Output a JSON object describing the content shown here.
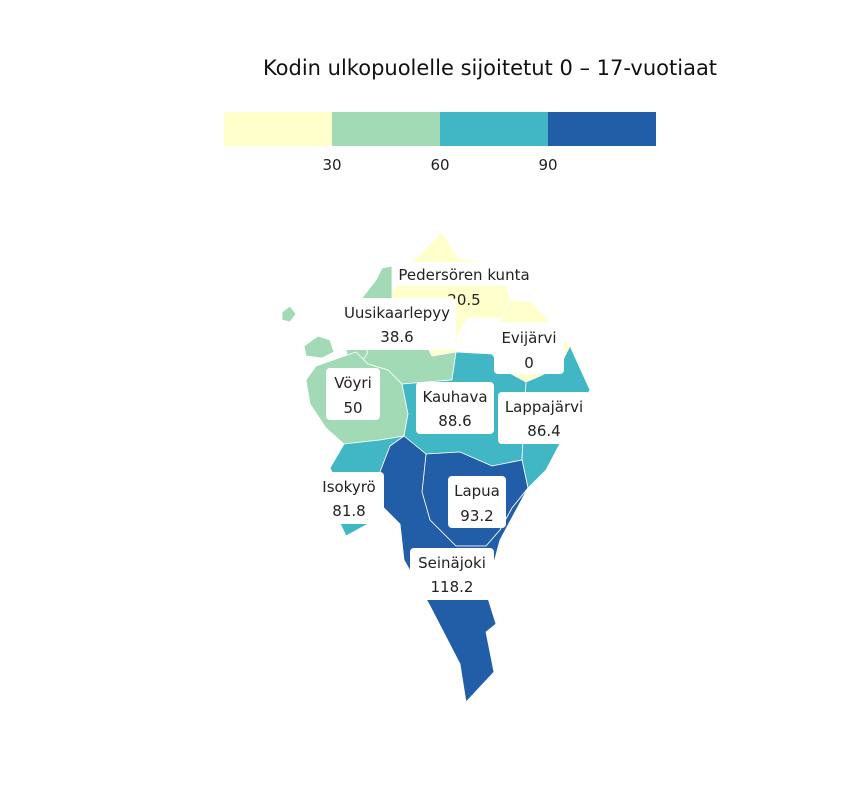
{
  "title": "Kodin ulkopuolelle sijoitetut 0 – 17-vuotiaat",
  "legend": {
    "colors": [
      "#ffffcc",
      "#a1dab4",
      "#41b6c4",
      "#225ea8"
    ],
    "thresholds": [
      30,
      60,
      90
    ],
    "tick_labels": [
      "30",
      "60",
      "90"
    ]
  },
  "municipalities": [
    {
      "name": "Pedersören kunta",
      "value": "20.5",
      "color_index": 0
    },
    {
      "name": "Uusikaarlepyy",
      "value": "38.6",
      "color_index": 1
    },
    {
      "name": "Evijärvi",
      "value": "0",
      "color_index": 0
    },
    {
      "name": "Vöyri",
      "value": "50",
      "color_index": 1
    },
    {
      "name": "Kauhava",
      "value": "88.6",
      "color_index": 2
    },
    {
      "name": "Lappajärvi",
      "value": "86.4",
      "color_index": 2
    },
    {
      "name": "Isokyrö",
      "value": "81.8",
      "color_index": 2
    },
    {
      "name": "Lapua",
      "value": "93.2",
      "color_index": 3
    },
    {
      "name": "Seinäjoki",
      "value": "118.2",
      "color_index": 3
    }
  ]
}
